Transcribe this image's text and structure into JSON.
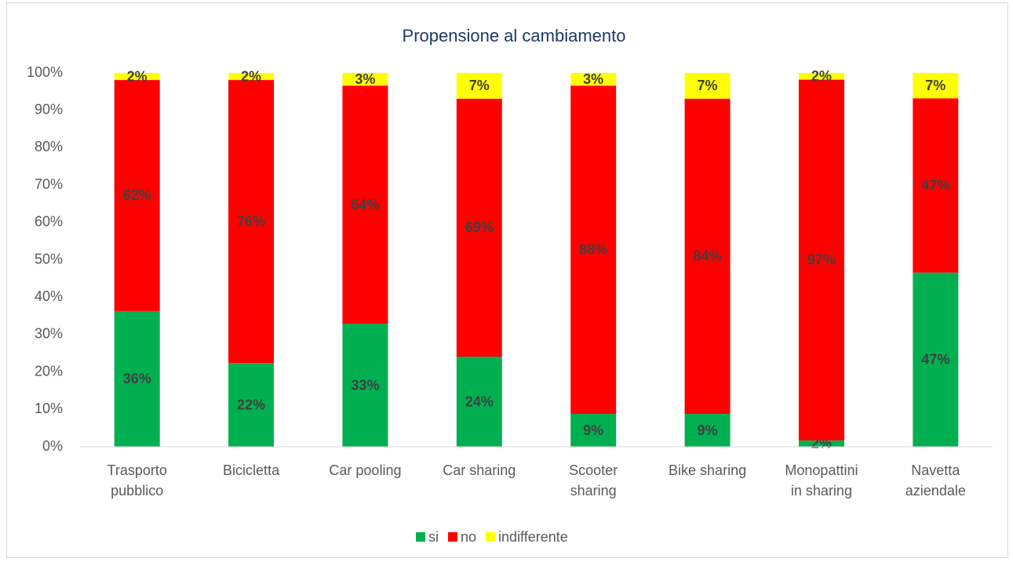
{
  "chart_data": {
    "type": "stacked_bar_100",
    "title": "Propensione al cambiamento",
    "categories": [
      "Trasporto pubblico",
      "Bicicletta",
      "Car pooling",
      "Car sharing",
      "Scooter sharing",
      "Bike sharing",
      "Monopattini in sharing",
      "Navetta aziendale"
    ],
    "series": [
      {
        "name": "si",
        "color": "#00b050",
        "values": [
          36.3,
          22.4,
          32.9,
          24.1,
          8.8,
          8.8,
          1.7,
          46.6
        ],
        "value_labels": [
          "36%",
          "22%",
          "33%",
          "24%",
          "9%",
          "9%",
          "2%",
          "47%"
        ]
      },
      {
        "name": "no",
        "color": "#ff0000",
        "values": [
          61.8,
          75.7,
          63.7,
          69.0,
          87.8,
          84.3,
          96.5,
          46.6
        ],
        "value_labels": [
          "62%",
          "76%",
          "64%",
          "69%",
          "88%",
          "84%",
          "97%",
          "47%"
        ]
      },
      {
        "name": "indifferente",
        "color": "#ffff00",
        "values": [
          1.9,
          1.9,
          3.4,
          6.9,
          3.4,
          6.9,
          1.8,
          6.8
        ],
        "value_labels": [
          "2%",
          "2%",
          "3%",
          "7%",
          "3%",
          "7%",
          "2%",
          "7%"
        ]
      }
    ],
    "ylim": [
      0,
      100
    ],
    "yticks": [
      {
        "value": 0,
        "label": "0%"
      },
      {
        "value": 10,
        "label": "10%"
      },
      {
        "value": 20,
        "label": "20%"
      },
      {
        "value": 30,
        "label": "30%"
      },
      {
        "value": 40,
        "label": "40%"
      },
      {
        "value": 50,
        "label": "50%"
      },
      {
        "value": 60,
        "label": "60%"
      },
      {
        "value": 70,
        "label": "70%"
      },
      {
        "value": 80,
        "label": "80%"
      },
      {
        "value": 90,
        "label": "90%"
      },
      {
        "value": 100,
        "label": "100%"
      }
    ],
    "grid": false,
    "legend": "bottom"
  }
}
